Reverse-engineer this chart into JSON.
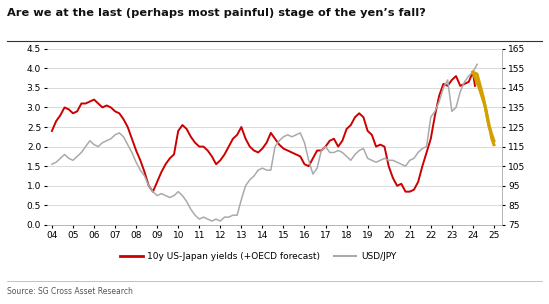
{
  "title": "Are we at the last (perhaps most painful) stage of the yen’s fall?",
  "source": "Source: SG Cross Asset Research",
  "legend": [
    "10y US-Japan yields (+OECD forecast)",
    "USD/JPY"
  ],
  "left_ylim": [
    0,
    4.5
  ],
  "right_ylim": [
    75,
    165
  ],
  "left_yticks": [
    0,
    0.5,
    1,
    1.5,
    2,
    2.5,
    3,
    3.5,
    4,
    4.5
  ],
  "right_yticks": [
    75,
    85,
    95,
    105,
    115,
    125,
    135,
    145,
    155,
    165
  ],
  "xtick_labels": [
    "04",
    "05",
    "06",
    "07",
    "08",
    "09",
    "10",
    "11",
    "12",
    "13",
    "14",
    "15",
    "16",
    "17",
    "18",
    "19",
    "20",
    "21",
    "22",
    "23",
    "24",
    "25"
  ],
  "red_color": "#CC0000",
  "gray_color": "#AAAAAA",
  "gold_color": "#D4A000",
  "background_color": "#FFFFFF",
  "red_x": [
    2004.0,
    2004.2,
    2004.4,
    2004.6,
    2004.8,
    2005.0,
    2005.2,
    2005.4,
    2005.6,
    2005.8,
    2006.0,
    2006.2,
    2006.4,
    2006.6,
    2006.8,
    2007.0,
    2007.2,
    2007.4,
    2007.6,
    2007.8,
    2008.0,
    2008.2,
    2008.4,
    2008.6,
    2008.8,
    2009.0,
    2009.2,
    2009.4,
    2009.6,
    2009.8,
    2010.0,
    2010.2,
    2010.4,
    2010.6,
    2010.8,
    2011.0,
    2011.2,
    2011.4,
    2011.6,
    2011.8,
    2012.0,
    2012.2,
    2012.4,
    2012.6,
    2012.8,
    2013.0,
    2013.2,
    2013.4,
    2013.6,
    2013.8,
    2014.0,
    2014.2,
    2014.4,
    2014.6,
    2014.8,
    2015.0,
    2015.2,
    2015.4,
    2015.6,
    2015.8,
    2016.0,
    2016.2,
    2016.4,
    2016.6,
    2016.8,
    2017.0,
    2017.2,
    2017.4,
    2017.6,
    2017.8,
    2018.0,
    2018.2,
    2018.4,
    2018.6,
    2018.8,
    2019.0,
    2019.2,
    2019.4,
    2019.6,
    2019.8,
    2020.0,
    2020.2,
    2020.4,
    2020.6,
    2020.8,
    2021.0,
    2021.2,
    2021.4,
    2021.6,
    2021.8,
    2022.0,
    2022.2,
    2022.4,
    2022.6,
    2022.8,
    2023.0,
    2023.2,
    2023.4,
    2023.6,
    2023.8,
    2024.0,
    2024.1
  ],
  "red_y": [
    2.4,
    2.65,
    2.8,
    3.0,
    2.95,
    2.85,
    2.9,
    3.1,
    3.1,
    3.15,
    3.2,
    3.1,
    3.0,
    3.05,
    3.0,
    2.9,
    2.85,
    2.7,
    2.5,
    2.2,
    1.9,
    1.65,
    1.35,
    1.0,
    0.85,
    1.1,
    1.35,
    1.55,
    1.7,
    1.8,
    2.4,
    2.55,
    2.45,
    2.25,
    2.1,
    2.0,
    2.0,
    1.9,
    1.75,
    1.55,
    1.65,
    1.8,
    2.0,
    2.2,
    2.3,
    2.5,
    2.2,
    2.0,
    1.9,
    1.85,
    1.95,
    2.1,
    2.35,
    2.2,
    2.05,
    1.95,
    1.9,
    1.85,
    1.8,
    1.75,
    1.55,
    1.5,
    1.7,
    1.9,
    1.9,
    2.0,
    2.15,
    2.2,
    2.0,
    2.15,
    2.45,
    2.55,
    2.75,
    2.85,
    2.75,
    2.4,
    2.3,
    2.0,
    2.05,
    2.0,
    1.5,
    1.2,
    1.0,
    1.05,
    0.85,
    0.85,
    0.9,
    1.1,
    1.5,
    1.85,
    2.2,
    2.8,
    3.3,
    3.6,
    3.55,
    3.7,
    3.8,
    3.55,
    3.6,
    3.65,
    3.9,
    3.55
  ],
  "gray_x": [
    2004.0,
    2004.2,
    2004.4,
    2004.6,
    2004.8,
    2005.0,
    2005.2,
    2005.4,
    2005.6,
    2005.8,
    2006.0,
    2006.2,
    2006.4,
    2006.6,
    2006.8,
    2007.0,
    2007.2,
    2007.4,
    2007.6,
    2007.8,
    2008.0,
    2008.2,
    2008.4,
    2008.6,
    2008.8,
    2009.0,
    2009.2,
    2009.4,
    2009.6,
    2009.8,
    2010.0,
    2010.2,
    2010.4,
    2010.6,
    2010.8,
    2011.0,
    2011.2,
    2011.4,
    2011.6,
    2011.8,
    2012.0,
    2012.2,
    2012.4,
    2012.6,
    2012.8,
    2013.0,
    2013.2,
    2013.4,
    2013.6,
    2013.8,
    2014.0,
    2014.2,
    2014.4,
    2014.6,
    2014.8,
    2015.0,
    2015.2,
    2015.4,
    2015.6,
    2015.8,
    2016.0,
    2016.2,
    2016.4,
    2016.6,
    2016.8,
    2017.0,
    2017.2,
    2017.4,
    2017.6,
    2017.8,
    2018.0,
    2018.2,
    2018.4,
    2018.6,
    2018.8,
    2019.0,
    2019.2,
    2019.4,
    2019.6,
    2019.8,
    2020.0,
    2020.2,
    2020.4,
    2020.6,
    2020.8,
    2021.0,
    2021.2,
    2021.4,
    2021.6,
    2021.8,
    2022.0,
    2022.2,
    2022.4,
    2022.6,
    2022.8,
    2023.0,
    2023.2,
    2023.4,
    2023.6,
    2023.8,
    2024.0,
    2024.2
  ],
  "gray_y": [
    106,
    107,
    109,
    111,
    109,
    108,
    110,
    112,
    115,
    118,
    116,
    115,
    117,
    118,
    119,
    121,
    122,
    120,
    116,
    112,
    107,
    103,
    100,
    95,
    92,
    90,
    91,
    90,
    89,
    90,
    92,
    90,
    87,
    83,
    80,
    78,
    79,
    78,
    77,
    78,
    77,
    79,
    79,
    80,
    80,
    88,
    95,
    98,
    100,
    103,
    104,
    103,
    103,
    115,
    118,
    120,
    121,
    120,
    121,
    122,
    117,
    108,
    101,
    104,
    113,
    115,
    112,
    112,
    113,
    112,
    110,
    108,
    111,
    113,
    114,
    109,
    108,
    107,
    108,
    109,
    108,
    108,
    107,
    106,
    105,
    108,
    109,
    112,
    114,
    115,
    130,
    133,
    138,
    145,
    149,
    133,
    135,
    143,
    148,
    151,
    153,
    157
  ],
  "gold_x": [
    2024.0,
    2024.3,
    2024.6,
    2024.9,
    2025.0
  ],
  "gold_y": [
    3.9,
    3.5,
    3.0,
    2.2,
    2.05
  ],
  "gold_usd_x": [
    2024.0,
    2024.2,
    2024.5,
    2024.75,
    2025.0
  ],
  "gold_usd_y": [
    153,
    152,
    140,
    126,
    118
  ]
}
